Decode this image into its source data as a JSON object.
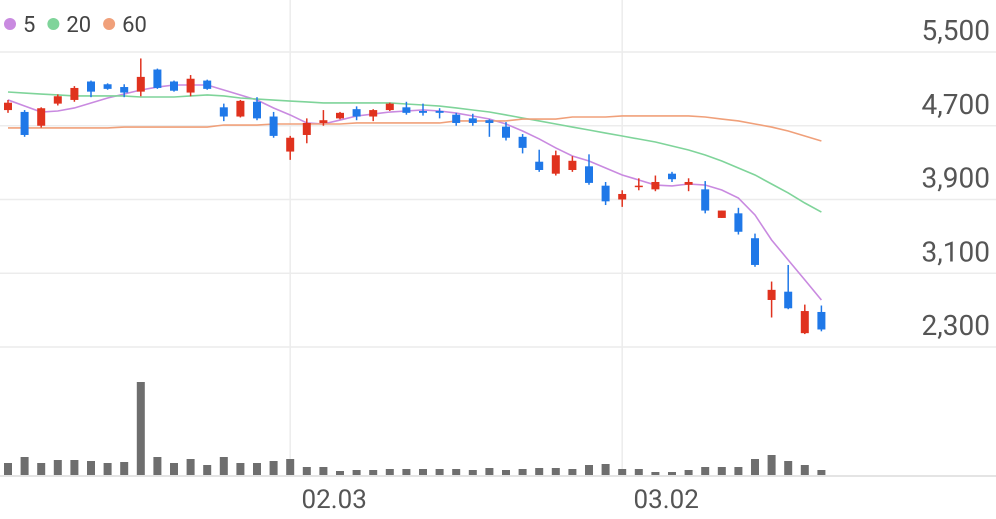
{
  "chart_data": {
    "type": "candlestick",
    "categories": [
      null,
      null,
      null,
      null,
      null,
      null,
      null,
      null,
      null,
      null,
      null,
      null,
      null,
      null,
      null,
      null,
      null,
      "02.03",
      null,
      null,
      null,
      null,
      null,
      null,
      null,
      null,
      null,
      null,
      null,
      null,
      null,
      null,
      null,
      null,
      null,
      null,
      null,
      "03.02",
      null,
      null,
      null,
      null,
      null,
      null,
      null,
      null,
      null,
      null,
      null,
      null
    ],
    "open": [
      4870,
      4850,
      4700,
      4940,
      4980,
      5180,
      5150,
      5120,
      5070,
      5310,
      5180,
      5060,
      5190,
      4900,
      4800,
      4960,
      4800,
      4420,
      4600,
      4730,
      4780,
      4880,
      4800,
      4870,
      4900,
      4860,
      4860,
      4820,
      4780,
      4760,
      4690,
      4580,
      4310,
      4180,
      4220,
      4260,
      4050,
      3900,
      4040,
      4010,
      4180,
      4060,
      4010,
      3700,
      3750,
      3480,
      2810,
      2900,
      2450,
      2680
    ],
    "high": [
      4980,
      4870,
      4900,
      5040,
      5130,
      5190,
      5160,
      5150,
      5430,
      5320,
      5190,
      5250,
      5200,
      4940,
      4980,
      5010,
      4850,
      4590,
      4780,
      4870,
      4850,
      4910,
      4880,
      4950,
      4960,
      4940,
      4890,
      4840,
      4830,
      4770,
      4740,
      4610,
      4440,
      4430,
      4370,
      4390,
      4090,
      4000,
      4130,
      4160,
      4200,
      4130,
      4100,
      3780,
      3810,
      3530,
      3010,
      3190,
      2760,
      2750
    ],
    "low": [
      4840,
      4580,
      4680,
      4920,
      4960,
      5010,
      5090,
      5010,
      5020,
      5100,
      5070,
      5020,
      5090,
      4750,
      4790,
      4760,
      4570,
      4330,
      4510,
      4700,
      4770,
      4760,
      4750,
      4860,
      4820,
      4810,
      4780,
      4700,
      4700,
      4580,
      4540,
      4400,
      4200,
      4160,
      4200,
      4060,
      3840,
      3820,
      4000,
      3990,
      4090,
      3990,
      3750,
      3700,
      3520,
      3170,
      2620,
      2710,
      2440,
      2470
    ],
    "close": [
      4950,
      4600,
      4890,
      5020,
      5110,
      5070,
      5100,
      5060,
      5230,
      5110,
      5080,
      5210,
      5100,
      4800,
      4970,
      4780,
      4590,
      4570,
      4730,
      4760,
      4840,
      4800,
      4870,
      4940,
      4840,
      4840,
      4840,
      4730,
      4730,
      4730,
      4570,
      4460,
      4220,
      4380,
      4320,
      4080,
      3880,
      3960,
      4050,
      4090,
      4120,
      4090,
      3780,
      3780,
      3550,
      3190,
      2920,
      2720,
      2690,
      2490
    ],
    "up_color": "#e0321e",
    "down_color": "#1f78e8",
    "series": [
      {
        "name": "5",
        "color": "#c98ae0",
        "values": [
          4980,
          4914,
          4849,
          4860,
          4893,
          4947,
          5001,
          5044,
          5088,
          5120,
          5142,
          5142,
          5142,
          5088,
          5034,
          4979,
          4893,
          4817,
          4730,
          4719,
          4762,
          4806,
          4827,
          4849,
          4860,
          4871,
          4860,
          4838,
          4806,
          4773,
          4719,
          4643,
          4557,
          4459,
          4372,
          4318,
          4242,
          4166,
          4112,
          4057,
          4047,
          4068,
          4057,
          4003,
          3916,
          3732,
          3461,
          3244,
          3028,
          2810
        ]
      },
      {
        "name": "20",
        "color": "#7fd49a",
        "values": [
          5066,
          5055,
          5044,
          5034,
          5023,
          5023,
          5023,
          5023,
          5012,
          5012,
          5012,
          5023,
          5034,
          5023,
          5001,
          4990,
          4979,
          4968,
          4958,
          4947,
          4947,
          4947,
          4947,
          4947,
          4936,
          4925,
          4914,
          4893,
          4871,
          4849,
          4817,
          4784,
          4752,
          4719,
          4686,
          4654,
          4621,
          4589,
          4556,
          4524,
          4480,
          4437,
          4383,
          4318,
          4242,
          4166,
          4068,
          3971,
          3862,
          3764
        ]
      },
      {
        "name": "60",
        "color": "#f0a07a",
        "values": [
          4676,
          4676,
          4676,
          4676,
          4676,
          4676,
          4676,
          4686,
          4686,
          4686,
          4686,
          4686,
          4686,
          4708,
          4708,
          4708,
          4719,
          4719,
          4719,
          4719,
          4719,
          4730,
          4730,
          4730,
          4730,
          4730,
          4730,
          4752,
          4752,
          4752,
          4752,
          4773,
          4773,
          4773,
          4795,
          4795,
          4795,
          4806,
          4806,
          4806,
          4806,
          4806,
          4795,
          4773,
          4752,
          4719,
          4686,
          4643,
          4589,
          4535
        ]
      }
    ],
    "ylim": [
      2300,
      5500
    ],
    "yticks": [
      {
        "value": 5500,
        "label": "5,500"
      },
      {
        "value": 4700,
        "label": "4,700"
      },
      {
        "value": 3900,
        "label": "3,900"
      },
      {
        "value": 3100,
        "label": "3,100"
      },
      {
        "value": 2300,
        "label": "2,300"
      }
    ],
    "volume": {
      "color": "#6e6e6e",
      "values": [
        12,
        18,
        12,
        15,
        15,
        14,
        12,
        13,
        93,
        18,
        12,
        16,
        10,
        18,
        12,
        12,
        14,
        16,
        8,
        8,
        4,
        5,
        5,
        6,
        6,
        6,
        6,
        6,
        5,
        7,
        5,
        6,
        7,
        7,
        6,
        10,
        11,
        6,
        6,
        3,
        3,
        5,
        8,
        8,
        8,
        16,
        20,
        14,
        10,
        5
      ],
      "ylim": [
        0,
        100
      ]
    },
    "grid": true
  }
}
